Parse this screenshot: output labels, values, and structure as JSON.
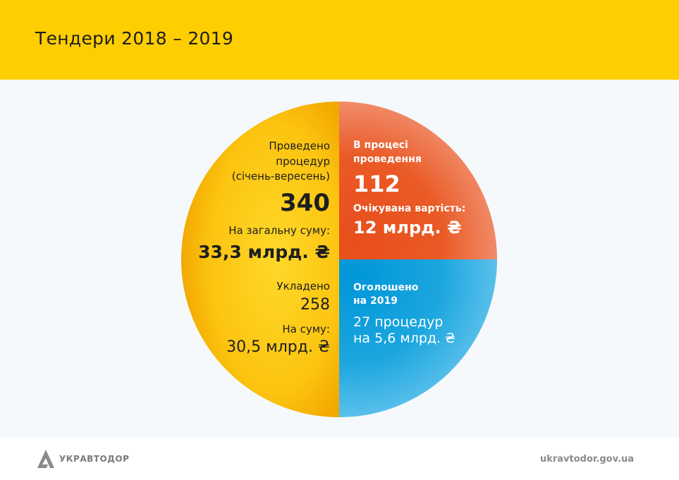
{
  "header": {
    "title": "Тендери 2018 – 2019"
  },
  "colors": {
    "yellow": "#ffce00",
    "orange": "#f4a700",
    "red": "#e84e1b",
    "blue": "#0a9ad8"
  },
  "chart_data": {
    "type": "pie",
    "title": "Тендери 2018 – 2019",
    "slices": [
      {
        "name": "Проведено процедур (січень-вересень)",
        "share": 0.5,
        "color": "#f4a900",
        "text": {
          "l1": "Проведено",
          "l2": "процедур",
          "l3": "(січень-вересень)",
          "count": "340",
          "sum_label": "На загальну суму:",
          "sum": "33,3 млрд. ₴",
          "signed_label": "Укладено",
          "signed": "258",
          "signed_sum_label": "На суму:",
          "signed_sum": "30,5 млрд. ₴"
        }
      },
      {
        "name": "В процесі проведення",
        "share": 0.25,
        "color": "#e84e1b",
        "text": {
          "l1": "В процесі",
          "l2": "проведення",
          "count": "112",
          "sum_label": "Очікувана вартість:",
          "sum": "12 млрд. ₴"
        }
      },
      {
        "name": "Оголошено на 2019",
        "share": 0.25,
        "color": "#0a9ad8",
        "text": {
          "l1": "Оголошено",
          "l2": "на 2019",
          "l3": "27 процедур",
          "l4": "на 5,6 млрд. ₴"
        }
      }
    ]
  },
  "footer": {
    "logo": "УКРАВТОДОР",
    "site": "ukravtodor.gov.ua"
  }
}
